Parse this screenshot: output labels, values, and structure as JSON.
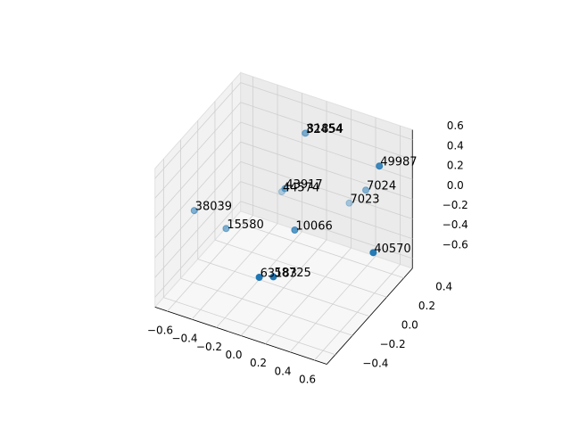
{
  "chart_data": {
    "type": "scatter3d",
    "labels": [
      "81854",
      "32454",
      "49987",
      "43917",
      "44574",
      "7024",
      "7023",
      "38039",
      "15580",
      "10066",
      "40570",
      "63183",
      "58725"
    ],
    "x": [
      -0.03,
      -0.05,
      0.64,
      -0.06,
      -0.19,
      0.39,
      0.22,
      -0.59,
      -0.4,
      0.09,
      0.66,
      0.01,
      0.09
    ],
    "y": [
      0.3,
      0.32,
      0.2,
      0.1,
      0.25,
      0.4,
      0.45,
      -0.2,
      -0.1,
      0.0,
      0.1,
      -0.3,
      -0.25
    ],
    "z": [
      0.56,
      0.53,
      0.6,
      0.18,
      -0.05,
      0.06,
      -0.19,
      0.03,
      -0.17,
      -0.08,
      -0.17,
      -0.3,
      -0.31
    ],
    "color": "#1f77b4",
    "xlim": [
      -0.7,
      0.7
    ],
    "ylim": [
      -0.5,
      0.5
    ],
    "zlim": [
      -0.7,
      0.7
    ],
    "xticks": [
      {
        "value": -0.6,
        "label": "−0.6"
      },
      {
        "value": -0.4,
        "label": "−0.4"
      },
      {
        "value": -0.2,
        "label": "−0.2"
      },
      {
        "value": 0,
        "label": "0.0"
      },
      0.2,
      0.4,
      0.6
    ],
    "yticks": [
      {
        "value": -0.4,
        "label": "−0.4"
      },
      {
        "value": -0.2,
        "label": "−0.2"
      },
      {
        "value": 0,
        "label": "0.0"
      },
      0.2,
      0.4
    ],
    "zticks": [
      {
        "value": -0.6,
        "label": "−0.6"
      },
      {
        "value": -0.4,
        "label": "−0.4"
      },
      {
        "value": -0.2,
        "label": "−0.2"
      },
      {
        "value": 0,
        "label": "0.0"
      },
      0.2,
      0.4,
      0.6
    ],
    "grid": true
  }
}
